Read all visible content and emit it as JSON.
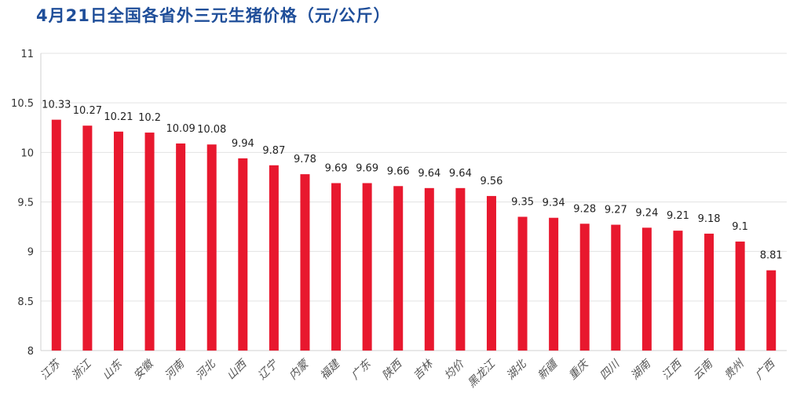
{
  "chart_data": {
    "type": "bar",
    "title": "4月21日全国各省外三元生猪价格（元/公斤）",
    "xlabel": "",
    "ylabel": "",
    "categories": [
      "江苏",
      "浙江",
      "山东",
      "安徽",
      "河南",
      "河北",
      "山西",
      "辽宁",
      "内蒙",
      "福建",
      "广东",
      "陕西",
      "吉林",
      "均价",
      "黑龙江",
      "湖北",
      "新疆",
      "重庆",
      "四川",
      "湖南",
      "江西",
      "云南",
      "贵州",
      "广西"
    ],
    "values": [
      10.33,
      10.27,
      10.21,
      10.2,
      10.09,
      10.08,
      9.94,
      9.87,
      9.78,
      9.69,
      9.69,
      9.66,
      9.64,
      9.64,
      9.56,
      9.35,
      9.34,
      9.28,
      9.27,
      9.24,
      9.21,
      9.18,
      9.1,
      8.81
    ],
    "ylim": [
      8,
      11
    ],
    "yticks": [
      "8",
      "8.5",
      "9",
      "9.5",
      "10",
      "10.5",
      "11"
    ],
    "grid": true,
    "bar_color": "#e8182e",
    "title_color": "#1f4e99"
  }
}
